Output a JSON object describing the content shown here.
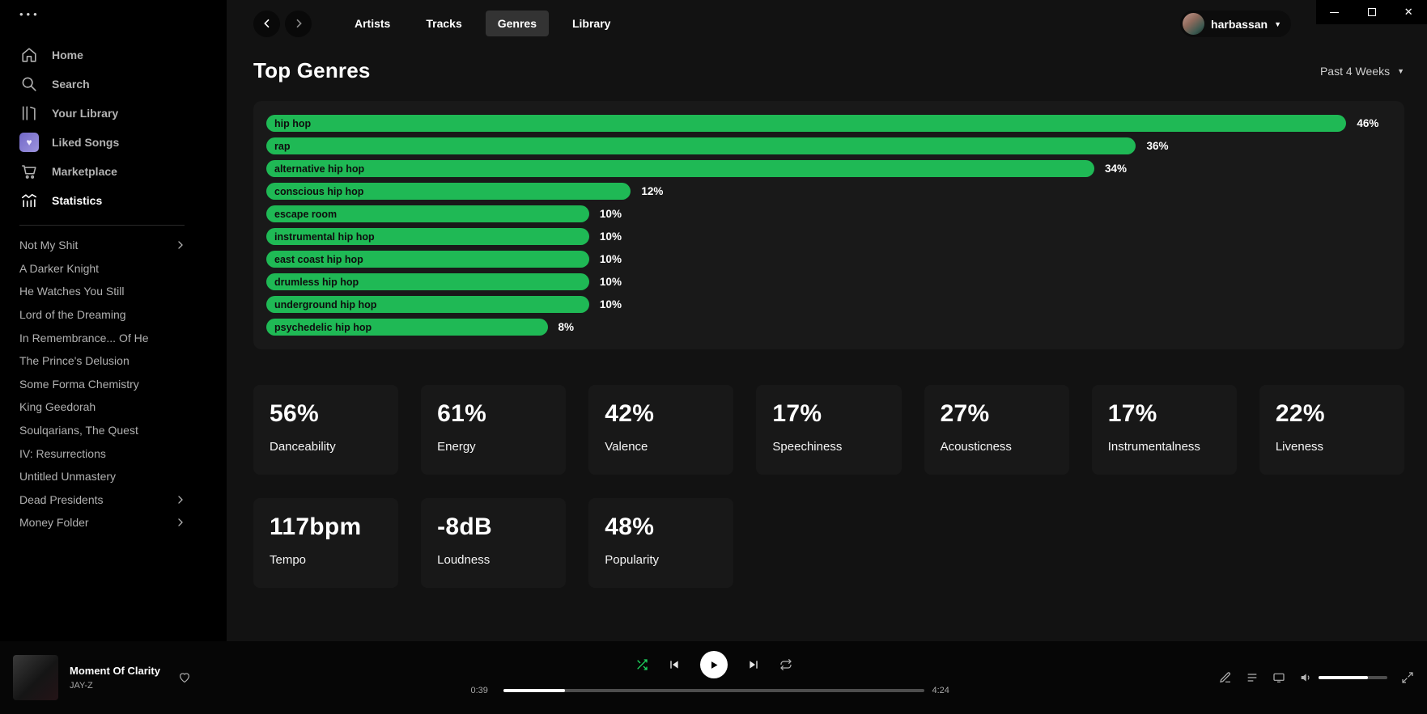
{
  "window": {
    "controls": [
      "minimize",
      "maximize",
      "close"
    ]
  },
  "sidebar": {
    "menu_dots": "•••",
    "nav": [
      {
        "label": "Home",
        "icon": "home-icon",
        "active": false
      },
      {
        "label": "Search",
        "icon": "search-icon",
        "active": false
      },
      {
        "label": "Your Library",
        "icon": "library-icon",
        "active": false
      },
      {
        "label": "Liked Songs",
        "icon": "liked-songs-icon",
        "active": false
      },
      {
        "label": "Marketplace",
        "icon": "marketplace-icon",
        "active": false
      },
      {
        "label": "Statistics",
        "icon": "statistics-icon",
        "active": true
      }
    ],
    "playlists": [
      {
        "label": "Not My Shit",
        "folder": true
      },
      {
        "label": "A Darker Knight",
        "folder": false
      },
      {
        "label": "He Watches You Still",
        "folder": false
      },
      {
        "label": "Lord of the Dreaming",
        "folder": false
      },
      {
        "label": "In Remembrance... Of He",
        "folder": false
      },
      {
        "label": "The Prince's Delusion",
        "folder": false
      },
      {
        "label": "Some Forma Chemistry",
        "folder": false
      },
      {
        "label": "King Geedorah",
        "folder": false
      },
      {
        "label": "Soulqarians, The Quest",
        "folder": false
      },
      {
        "label": "IV: Resurrections",
        "folder": false
      },
      {
        "label": "Untitled Unmastery",
        "folder": false
      },
      {
        "label": "Dead Presidents",
        "folder": true
      },
      {
        "label": "Money Folder",
        "folder": true
      }
    ]
  },
  "topbar": {
    "tabs": [
      {
        "label": "Artists",
        "active": false
      },
      {
        "label": "Tracks",
        "active": false
      },
      {
        "label": "Genres",
        "active": true
      },
      {
        "label": "Library",
        "active": false
      }
    ],
    "user": {
      "name": "harbassan"
    }
  },
  "page": {
    "title": "Top Genres",
    "range_label": "Past 4 Weeks"
  },
  "chart_data": {
    "type": "bar",
    "orientation": "horizontal",
    "title": "Top Genres",
    "categories": [
      "hip hop",
      "rap",
      "alternative hip hop",
      "conscious hip hop",
      "escape room",
      "instrumental hip hop",
      "east coast hip hop",
      "drumless hip hop",
      "underground hip hop",
      "psychedelic hip hop"
    ],
    "values": [
      46,
      36,
      34,
      12,
      10,
      10,
      10,
      10,
      10,
      8
    ],
    "unit": "%",
    "xlim": [
      0,
      46
    ],
    "bar_color": "#1fb955",
    "grid": false,
    "legend": false
  },
  "stats": {
    "cards": [
      {
        "value": "56%",
        "label": "Danceability"
      },
      {
        "value": "61%",
        "label": "Energy"
      },
      {
        "value": "42%",
        "label": "Valence"
      },
      {
        "value": "17%",
        "label": "Speechiness"
      },
      {
        "value": "27%",
        "label": "Acousticness"
      },
      {
        "value": "17%",
        "label": "Instrumentalness"
      },
      {
        "value": "22%",
        "label": "Liveness"
      },
      {
        "value": "117bpm",
        "label": "Tempo"
      },
      {
        "value": "-8dB",
        "label": "Loudness"
      },
      {
        "value": "48%",
        "label": "Popularity"
      }
    ]
  },
  "player": {
    "track": {
      "title": "Moment Of Clarity",
      "artist": "JAY-Z"
    },
    "elapsed": "0:39",
    "duration": "4:24",
    "progress_pct": 14.8,
    "volume_pct": 72,
    "shuffle_active": true,
    "accent": "#1ed760"
  }
}
